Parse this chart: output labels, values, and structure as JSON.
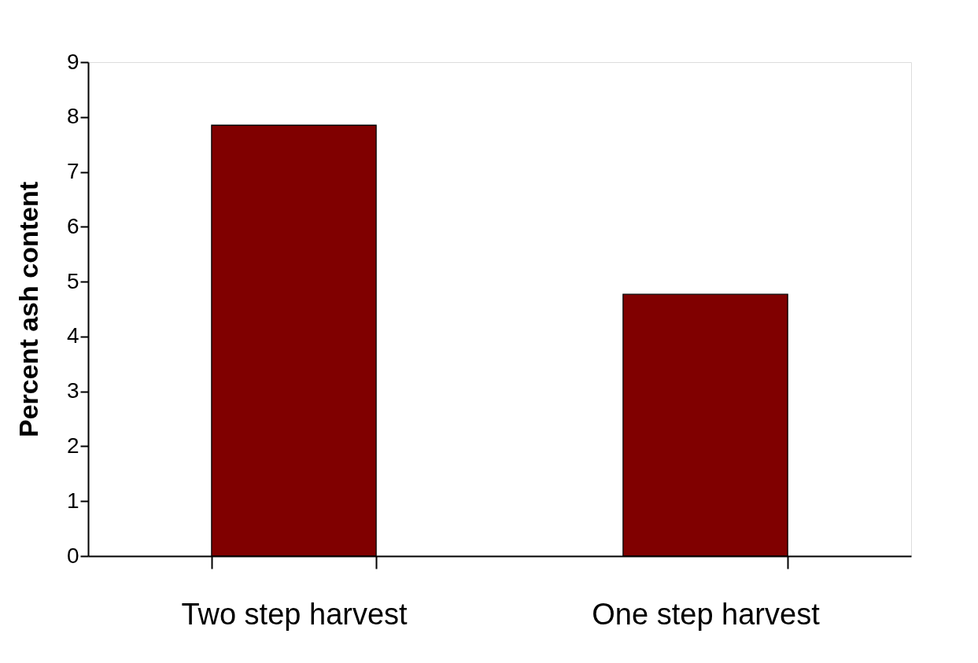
{
  "chart_data": {
    "type": "bar",
    "ylabel": "Percent ash content",
    "categories": [
      "Two step harvest",
      "One step harvest"
    ],
    "values": [
      7.85,
      4.77
    ],
    "color": "#800000",
    "ylim": [
      0,
      9
    ],
    "yticks": [
      0,
      1,
      2,
      3,
      4,
      5,
      6,
      7,
      8,
      9
    ],
    "grid": false
  }
}
